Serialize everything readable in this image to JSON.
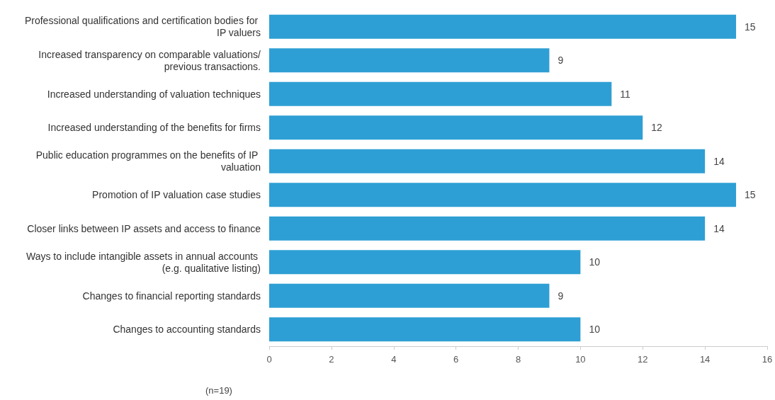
{
  "chart_data": {
    "type": "bar",
    "orientation": "horizontal",
    "categories": [
      "Professional qualifications and certification bodies for IP valuers",
      "Increased transparency on comparable valuations/previous transactions.",
      "Increased understanding of valuation techniques",
      "Increased understanding of the benefits for firms",
      "Public education programmes on the benefits of IP valuation",
      "Promotion of IP valuation case studies",
      "Closer links between IP assets and access to finance",
      "Ways to include intangible assets in annual accounts (e.g. qualitative listing)",
      "Changes to financial reporting standards",
      "Changes to accounting standards"
    ],
    "values": [
      15,
      9,
      11,
      12,
      14,
      15,
      14,
      10,
      9,
      10
    ],
    "color": "#2e9fd4",
    "xlim": [
      0,
      16
    ],
    "xticks": [
      0,
      2,
      4,
      6,
      8,
      10,
      12,
      14,
      16
    ],
    "grid": false,
    "data_labels": true,
    "annotations": [
      "(n=19)"
    ]
  }
}
